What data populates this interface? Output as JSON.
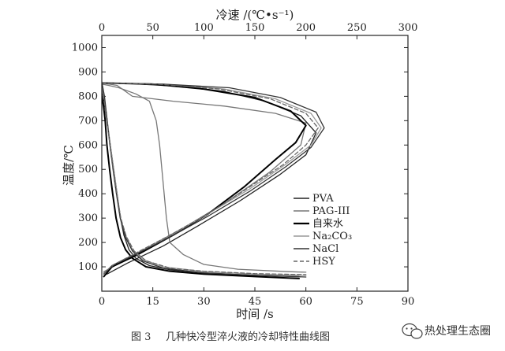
{
  "chart_data": {
    "type": "line",
    "title": "",
    "xlabel": "时间 /s",
    "ylabel": "温度/℃",
    "x2label": "冷速 /(℃•s⁻¹)",
    "xlim": [
      0,
      90
    ],
    "ylim": [
      0,
      1050
    ],
    "x2lim": [
      0,
      300
    ],
    "x_ticks": [
      "0",
      "15",
      "30",
      "45",
      "60",
      "75",
      "90"
    ],
    "y_ticks": [
      "100",
      "200",
      "300",
      "400",
      "500",
      "600",
      "700",
      "800",
      "900",
      "1000"
    ],
    "x2_ticks": [
      "0",
      "50",
      "100",
      "150",
      "200",
      "250",
      "300"
    ],
    "legend_position": "right",
    "grid": false,
    "series": [
      {
        "name": "PVA",
        "color": "#222222",
        "dash": "",
        "time_temp": [
          [
            0,
            820
          ],
          [
            0.5,
            790
          ],
          [
            1,
            750
          ],
          [
            1.5,
            700
          ],
          [
            2.5,
            600
          ],
          [
            3.5,
            500
          ],
          [
            4.5,
            400
          ],
          [
            5.5,
            300
          ],
          [
            6.5,
            230
          ],
          [
            8,
            170
          ],
          [
            10,
            135
          ],
          [
            14,
            105
          ],
          [
            20,
            88
          ],
          [
            30,
            75
          ],
          [
            45,
            65
          ],
          [
            58,
            60
          ]
        ],
        "rate_temp": [
          [
            0,
            855
          ],
          [
            30,
            852
          ],
          [
            80,
            840
          ],
          [
            120,
            820
          ],
          [
            160,
            780
          ],
          [
            195,
            720
          ],
          [
            210,
            650
          ],
          [
            200,
            560
          ],
          [
            175,
            480
          ],
          [
            135,
            370
          ],
          [
            95,
            270
          ],
          [
            60,
            185
          ],
          [
            25,
            115
          ],
          [
            5,
            70
          ]
        ]
      },
      {
        "name": "PAG-III",
        "color": "#777777",
        "dash": "",
        "time_temp": [
          [
            0,
            850
          ],
          [
            2,
            845
          ],
          [
            5,
            835
          ],
          [
            10,
            810
          ],
          [
            14,
            780
          ],
          [
            16,
            700
          ],
          [
            17,
            600
          ],
          [
            18,
            450
          ],
          [
            19,
            300
          ],
          [
            20,
            200
          ],
          [
            24,
            150
          ],
          [
            30,
            110
          ],
          [
            40,
            90
          ],
          [
            55,
            80
          ],
          [
            60,
            78
          ]
        ],
        "rate_temp": [
          [
            0,
            855
          ],
          [
            15,
            845
          ],
          [
            30,
            800
          ],
          [
            70,
            780
          ],
          [
            120,
            760
          ],
          [
            170,
            730
          ],
          [
            200,
            690
          ],
          [
            195,
            600
          ],
          [
            165,
            490
          ],
          [
            120,
            360
          ],
          [
            80,
            260
          ],
          [
            45,
            180
          ],
          [
            15,
            110
          ],
          [
            2,
            80
          ]
        ]
      },
      {
        "name": "自来水",
        "color": "#000000",
        "dash": "",
        "time_temp": [
          [
            0,
            800
          ],
          [
            0.5,
            760
          ],
          [
            1,
            700
          ],
          [
            1.5,
            600
          ],
          [
            2.3,
            500
          ],
          [
            3.2,
            400
          ],
          [
            4.2,
            300
          ],
          [
            5.5,
            220
          ],
          [
            7,
            170
          ],
          [
            9,
            135
          ],
          [
            13,
            100
          ],
          [
            20,
            82
          ],
          [
            30,
            70
          ],
          [
            45,
            60
          ],
          [
            58,
            52
          ]
        ],
        "rate_temp": [
          [
            0,
            855
          ],
          [
            50,
            850
          ],
          [
            100,
            830
          ],
          [
            150,
            795
          ],
          [
            185,
            740
          ],
          [
            200,
            680
          ],
          [
            190,
            610
          ],
          [
            170,
            540
          ],
          [
            140,
            430
          ],
          [
            105,
            320
          ],
          [
            70,
            230
          ],
          [
            35,
            150
          ],
          [
            10,
            100
          ],
          [
            2,
            60
          ]
        ]
      },
      {
        "name": "Na₂CO₃",
        "color": "#999999",
        "dash": "",
        "time_temp": [
          [
            0,
            840
          ],
          [
            0.8,
            790
          ],
          [
            1.6,
            700
          ],
          [
            2.5,
            600
          ],
          [
            3.5,
            500
          ],
          [
            4.5,
            400
          ],
          [
            5.5,
            300
          ],
          [
            7,
            230
          ],
          [
            9,
            170
          ],
          [
            12,
            130
          ],
          [
            18,
            100
          ],
          [
            30,
            80
          ],
          [
            45,
            70
          ],
          [
            60,
            65
          ]
        ],
        "rate_temp": [
          [
            0,
            855
          ],
          [
            60,
            850
          ],
          [
            120,
            830
          ],
          [
            170,
            790
          ],
          [
            205,
            730
          ],
          [
            215,
            670
          ],
          [
            205,
            600
          ],
          [
            180,
            520
          ],
          [
            145,
            420
          ],
          [
            105,
            320
          ],
          [
            70,
            235
          ],
          [
            38,
            165
          ],
          [
            12,
            110
          ],
          [
            2,
            75
          ]
        ]
      },
      {
        "name": "NaCl",
        "color": "#333333",
        "dash": "",
        "time_temp": [
          [
            0,
            860
          ],
          [
            0.8,
            800
          ],
          [
            1.6,
            700
          ],
          [
            2.4,
            600
          ],
          [
            3.3,
            500
          ],
          [
            4.3,
            400
          ],
          [
            5.4,
            300
          ],
          [
            7,
            220
          ],
          [
            9,
            165
          ],
          [
            12,
            125
          ],
          [
            18,
            95
          ],
          [
            30,
            75
          ],
          [
            45,
            65
          ],
          [
            60,
            58
          ]
        ],
        "rate_temp": [
          [
            0,
            855
          ],
          [
            60,
            850
          ],
          [
            125,
            835
          ],
          [
            175,
            795
          ],
          [
            210,
            735
          ],
          [
            218,
            670
          ],
          [
            205,
            590
          ],
          [
            180,
            510
          ],
          [
            145,
            410
          ],
          [
            105,
            310
          ],
          [
            68,
            225
          ],
          [
            35,
            155
          ],
          [
            10,
            105
          ],
          [
            2,
            70
          ]
        ]
      },
      {
        "name": "HSY",
        "color": "#666666",
        "dash": "5,3",
        "time_temp": [
          [
            0,
            830
          ],
          [
            0.7,
            780
          ],
          [
            1.5,
            700
          ],
          [
            2.4,
            600
          ],
          [
            3.4,
            500
          ],
          [
            4.4,
            400
          ],
          [
            5.6,
            300
          ],
          [
            7.2,
            225
          ],
          [
            9.5,
            165
          ],
          [
            13,
            125
          ],
          [
            20,
            95
          ],
          [
            30,
            82
          ],
          [
            45,
            72
          ],
          [
            60,
            68
          ]
        ],
        "rate_temp": [
          [
            0,
            855
          ],
          [
            55,
            850
          ],
          [
            115,
            830
          ],
          [
            165,
            790
          ],
          [
            200,
            730
          ],
          [
            212,
            670
          ],
          [
            200,
            600
          ],
          [
            178,
            520
          ],
          [
            142,
            420
          ],
          [
            103,
            315
          ],
          [
            66,
            228
          ],
          [
            34,
            158
          ],
          [
            10,
            105
          ],
          [
            2,
            72
          ]
        ]
      }
    ]
  },
  "caption": {
    "label": "图 3",
    "text": "几种快冷型淬火液的冷却特性曲线图"
  },
  "watermark": {
    "text": "热处理生态圈"
  }
}
